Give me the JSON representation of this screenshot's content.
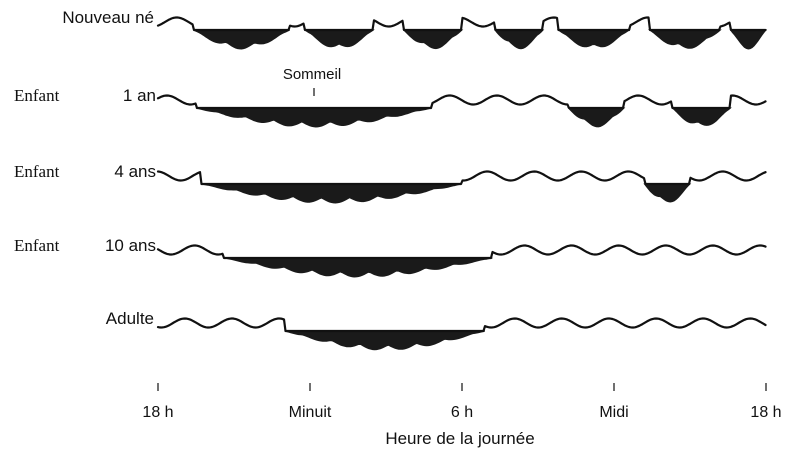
{
  "chart_data": {
    "type": "area",
    "title": "",
    "xlabel": "Heure de la journée",
    "ylabel": "",
    "x_unit": "hours since 18 h",
    "xlim": [
      0,
      24
    ],
    "ticks": [
      {
        "x": 0,
        "label": "18 h"
      },
      {
        "x": 6,
        "label": "Minuit"
      },
      {
        "x": 12,
        "label": "6 h"
      },
      {
        "x": 18,
        "label": "Midi"
      },
      {
        "x": 24,
        "label": "18 h"
      }
    ],
    "annotation": {
      "label": "Sommeil",
      "x": 6.1,
      "row": 1
    },
    "rows": [
      {
        "label_parts": [
          "Nouveau né"
        ],
        "serif": [
          false
        ],
        "sleep_periods": [
          [
            1.4,
            5.2
          ],
          [
            5.8,
            8.5
          ],
          [
            9.7,
            12.0
          ],
          [
            13.3,
            15.2
          ],
          [
            15.8,
            18.6
          ],
          [
            19.4,
            22.2
          ],
          [
            22.6,
            24.0
          ]
        ]
      },
      {
        "label_parts": [
          "Enfant",
          "1 an"
        ],
        "serif": [
          true,
          false
        ],
        "sleep_periods": [
          [
            1.5,
            10.8
          ],
          [
            16.2,
            18.4
          ],
          [
            20.3,
            22.6
          ]
        ]
      },
      {
        "label_parts": [
          "Enfant",
          "4 ans"
        ],
        "serif": [
          true,
          false
        ],
        "sleep_periods": [
          [
            1.7,
            12.0
          ],
          [
            19.2,
            21.0
          ]
        ]
      },
      {
        "label_parts": [
          "Enfant",
          "10 ans"
        ],
        "serif": [
          true,
          false
        ],
        "sleep_periods": [
          [
            2.6,
            13.2
          ]
        ]
      },
      {
        "label_parts": [
          "Adulte"
        ],
        "serif": [
          false
        ],
        "sleep_periods": [
          [
            5.0,
            12.9
          ]
        ]
      }
    ]
  }
}
